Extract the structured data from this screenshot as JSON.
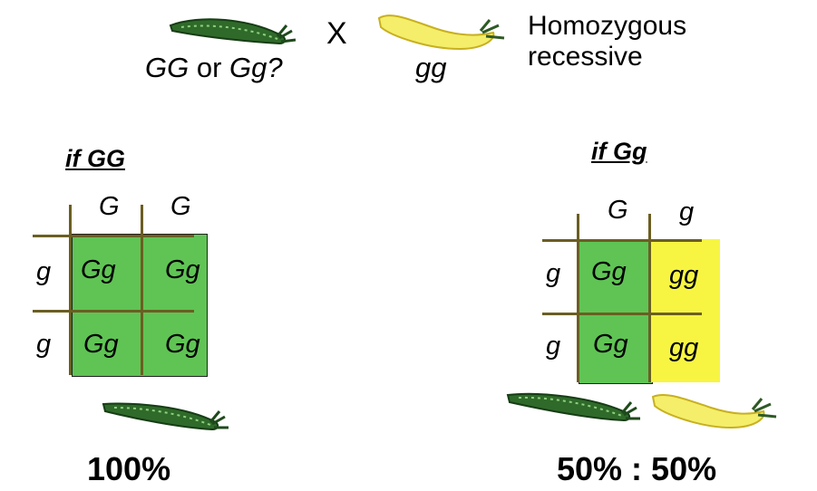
{
  "header": {
    "parent_unknown": {
      "g1": "GG",
      "or": " or ",
      "g2": "Gg?"
    },
    "cross_symbol": "X",
    "parent_known": "gg",
    "note_line1": "Homozygous",
    "note_line2": "recessive",
    "pods": [
      "green-pea-pod-icon",
      "yellow-pea-pod-icon"
    ]
  },
  "left_square": {
    "title": "if GG",
    "top_alleles": [
      "G",
      "G"
    ],
    "side_alleles": [
      "g",
      "g"
    ],
    "cells": [
      [
        "Gg",
        "Gg"
      ],
      [
        "Gg",
        "Gg"
      ]
    ],
    "cell_colors": [
      [
        "#5fc454",
        "#5fc454"
      ],
      [
        "#5fc454",
        "#5fc454"
      ]
    ],
    "result": "100%",
    "result_pods": [
      "green-pea-pod-icon"
    ]
  },
  "right_square": {
    "title": "if Gg",
    "top_alleles": [
      "G",
      "g"
    ],
    "side_alleles": [
      "g",
      "g"
    ],
    "cells": [
      [
        "Gg",
        "gg"
      ],
      [
        "Gg",
        "gg"
      ]
    ],
    "cell_colors": [
      [
        "#5fc454",
        "#f7f542"
      ],
      [
        "#5fc454",
        "#f7f542"
      ]
    ],
    "result": "50% : 50%",
    "result_pods": [
      "green-pea-pod-icon",
      "yellow-pea-pod-icon"
    ]
  },
  "colors": {
    "green_cell": "#5fc454",
    "yellow_cell": "#f7f542",
    "grid_line": "#6b5e22",
    "pod_green": "#2f6a2a",
    "pod_yellow": "#f4ee6a"
  }
}
